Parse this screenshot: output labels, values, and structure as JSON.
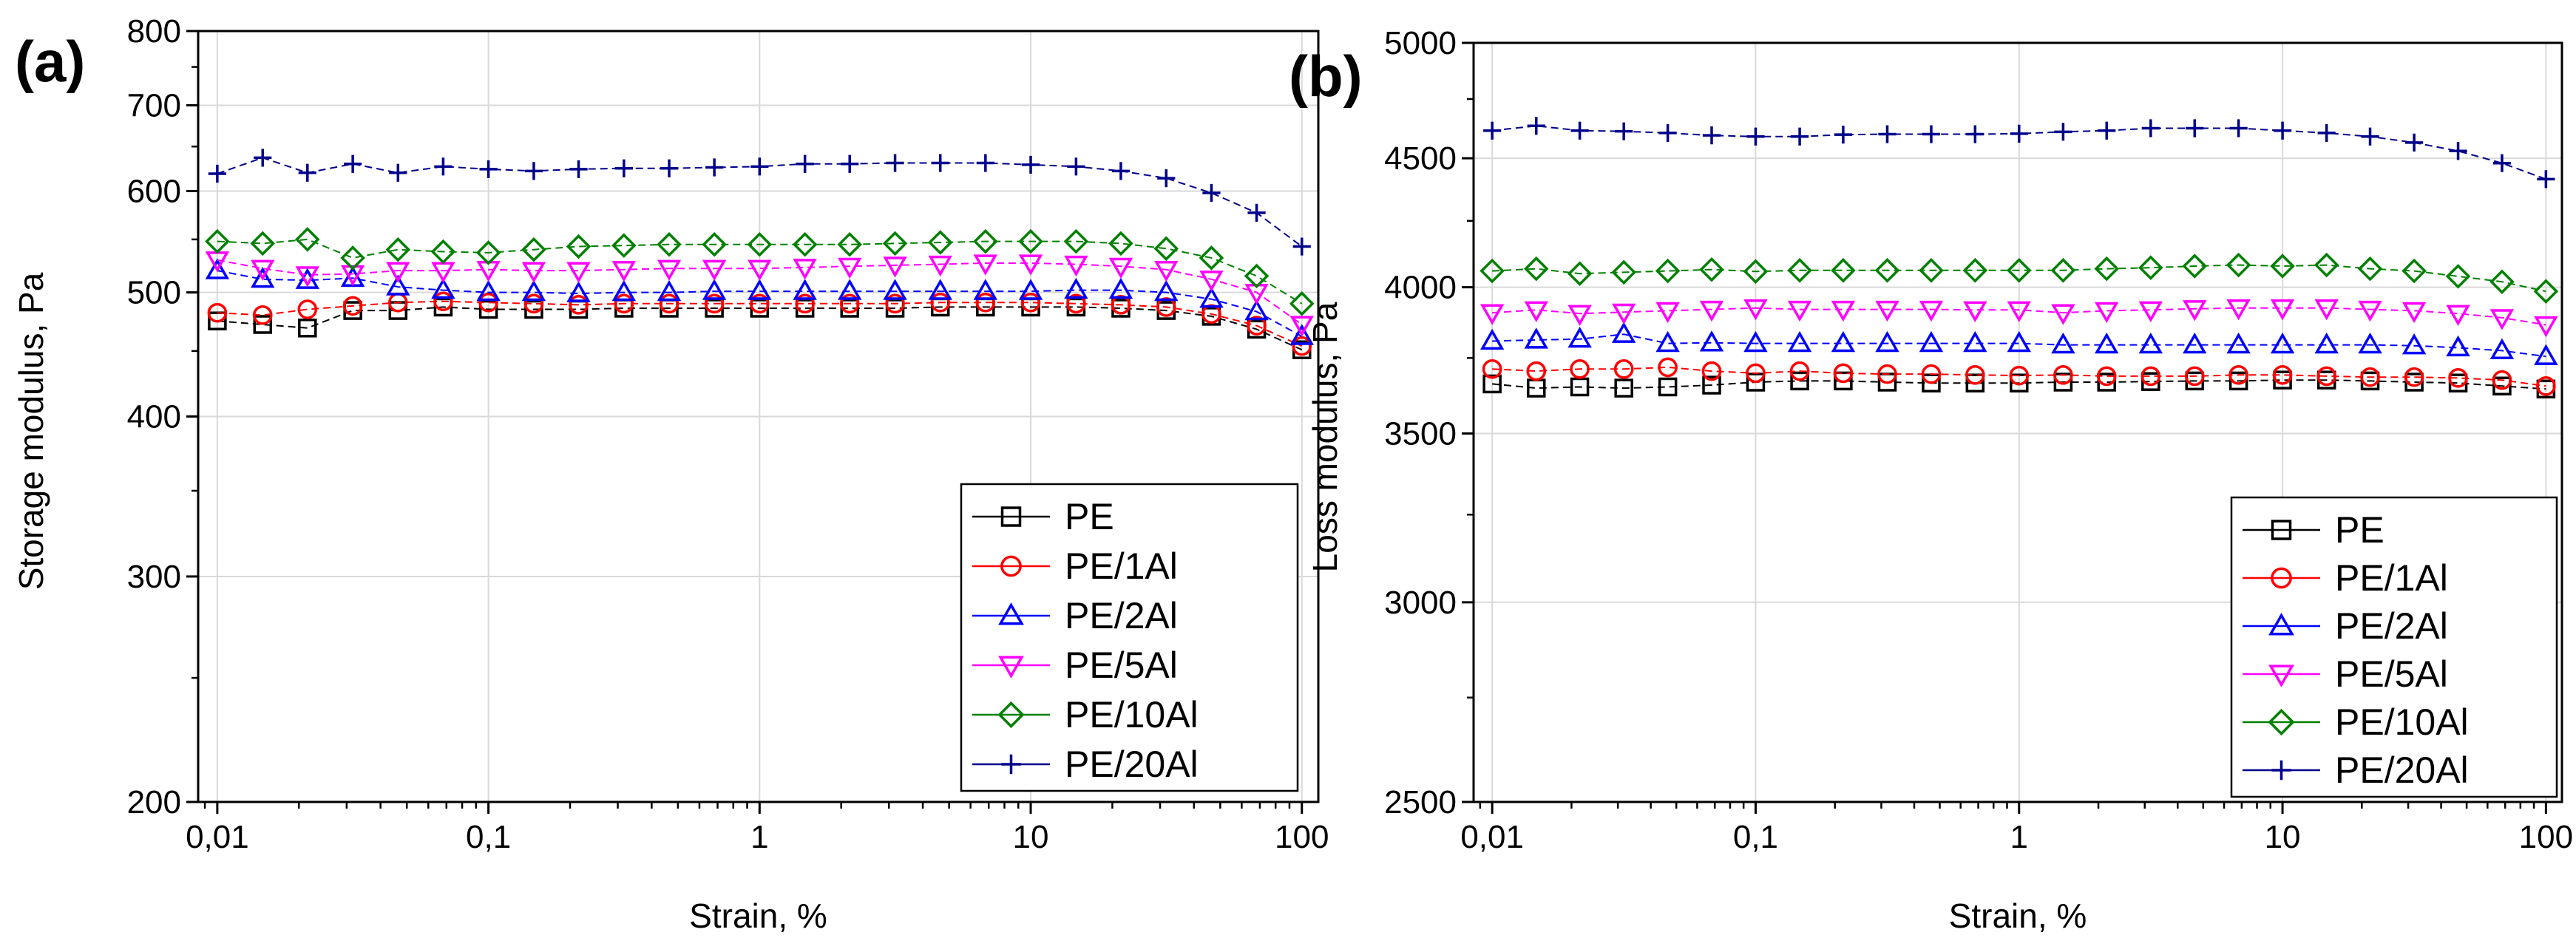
{
  "chart_data": [
    {
      "type": "line",
      "panel_label": "(a)",
      "xlabel": "Strain, %",
      "ylabel": "Storage modulus, Pa",
      "xscale": "log",
      "yscale": "log",
      "xlim": [
        0.0085,
        115
      ],
      "ylim": [
        200,
        800
      ],
      "xticks": [
        0.01,
        0.1,
        1,
        10,
        100
      ],
      "xtick_labels": [
        "0,01",
        "0,1",
        "1",
        "10",
        "100"
      ],
      "yticks": [
        200,
        300,
        400,
        500,
        600,
        700,
        800
      ],
      "ytick_labels": [
        "200",
        "300",
        "400",
        "500",
        "600",
        "700",
        "800"
      ],
      "grid": true,
      "legend_position": "bottom-right",
      "x": [
        0.01,
        0.0147,
        0.0215,
        0.0316,
        0.0464,
        0.0681,
        0.1,
        0.147,
        0.215,
        0.316,
        0.464,
        0.681,
        1,
        1.47,
        2.15,
        3.16,
        4.64,
        6.81,
        10,
        14.7,
        21.5,
        31.6,
        46.4,
        68.1,
        100
      ],
      "series": [
        {
          "name": "PE",
          "color": "#000000",
          "marker": "square",
          "values": [
            475,
            472,
            469,
            484,
            484,
            487,
            485,
            485,
            485,
            486,
            486,
            486,
            486,
            486,
            486,
            486,
            487,
            487,
            487,
            487,
            486,
            484,
            479,
            468,
            451
          ]
        },
        {
          "name": "PE/1Al",
          "color": "#ff0000",
          "marker": "circle",
          "values": [
            482,
            480,
            485,
            488,
            491,
            492,
            491,
            490,
            489,
            490,
            490,
            490,
            490,
            490,
            490,
            490,
            491,
            491,
            491,
            490,
            489,
            487,
            481,
            471,
            454
          ]
        },
        {
          "name": "PE/2Al",
          "color": "#0000ff",
          "marker": "triangle-up",
          "values": [
            520,
            512,
            511,
            513,
            505,
            502,
            500,
            500,
            499,
            500,
            500,
            501,
            501,
            501,
            501,
            501,
            501,
            501,
            501,
            502,
            502,
            500,
            494,
            483,
            462
          ]
        },
        {
          "name": "PE/5Al",
          "color": "#ff00ff",
          "marker": "triangle-down",
          "values": [
            530,
            522,
            516,
            517,
            520,
            520,
            521,
            520,
            520,
            521,
            522,
            522,
            522,
            523,
            524,
            525,
            526,
            527,
            527,
            526,
            524,
            521,
            512,
            500,
            472
          ]
        },
        {
          "name": "PE/10Al",
          "color": "#008000",
          "marker": "diamond",
          "values": [
            548,
            546,
            550,
            532,
            540,
            538,
            537,
            540,
            543,
            544,
            545,
            545,
            545,
            545,
            545,
            546,
            547,
            548,
            548,
            548,
            546,
            541,
            532,
            515,
            490
          ]
        },
        {
          "name": "PE/20Al",
          "color": "#00008b",
          "marker": "plus",
          "values": [
            619,
            637,
            620,
            630,
            620,
            627,
            624,
            622,
            624,
            625,
            625,
            626,
            627,
            630,
            630,
            631,
            631,
            631,
            629,
            627,
            622,
            614,
            598,
            577,
            543
          ]
        }
      ]
    },
    {
      "type": "line",
      "panel_label": "(b)",
      "xlabel": "Strain, %",
      "ylabel": "Loss modulus, Pa",
      "xscale": "log",
      "yscale": "log",
      "xlim": [
        0.0085,
        115
      ],
      "ylim": [
        2500,
        5000
      ],
      "xticks": [
        0.01,
        0.1,
        1,
        10,
        100
      ],
      "xtick_labels": [
        "0,01",
        "0,1",
        "1",
        "10",
        "100"
      ],
      "yticks": [
        2500,
        3000,
        3500,
        4000,
        4500,
        5000
      ],
      "ytick_labels": [
        "2500",
        "3000",
        "3500",
        "4000",
        "4500",
        "5000"
      ],
      "grid": true,
      "legend_position": "bottom-right",
      "x": [
        0.01,
        0.0147,
        0.0215,
        0.0316,
        0.0464,
        0.0681,
        0.1,
        0.147,
        0.215,
        0.316,
        0.464,
        0.681,
        1,
        1.47,
        2.15,
        3.16,
        4.64,
        6.81,
        10,
        14.7,
        21.5,
        31.6,
        46.4,
        68.1,
        100
      ],
      "series": [
        {
          "name": "PE",
          "color": "#000000",
          "marker": "square",
          "values": [
            3662,
            3648,
            3652,
            3648,
            3652,
            3658,
            3668,
            3672,
            3672,
            3668,
            3665,
            3665,
            3665,
            3668,
            3668,
            3670,
            3672,
            3672,
            3675,
            3675,
            3672,
            3668,
            3665,
            3655,
            3645
          ]
        },
        {
          "name": "PE/1Al",
          "color": "#ff0000",
          "marker": "circle",
          "values": [
            3712,
            3705,
            3712,
            3712,
            3718,
            3705,
            3698,
            3705,
            3698,
            3695,
            3695,
            3692,
            3690,
            3692,
            3688,
            3688,
            3688,
            3692,
            3692,
            3688,
            3685,
            3685,
            3682,
            3675,
            3655
          ]
        },
        {
          "name": "PE/2Al",
          "color": "#0000ff",
          "marker": "triangle-up",
          "values": [
            3808,
            3812,
            3815,
            3832,
            3800,
            3802,
            3800,
            3800,
            3800,
            3800,
            3800,
            3800,
            3800,
            3795,
            3795,
            3795,
            3795,
            3795,
            3795,
            3795,
            3795,
            3792,
            3785,
            3775,
            3755
          ]
        },
        {
          "name": "PE/5Al",
          "color": "#ff00ff",
          "marker": "triangle-down",
          "values": [
            3908,
            3918,
            3905,
            3910,
            3915,
            3920,
            3925,
            3920,
            3920,
            3920,
            3920,
            3918,
            3918,
            3908,
            3915,
            3918,
            3922,
            3925,
            3925,
            3925,
            3920,
            3915,
            3905,
            3890,
            3865
          ]
        },
        {
          "name": "PE/10Al",
          "color": "#008000",
          "marker": "diamond",
          "values": [
            4060,
            4068,
            4050,
            4055,
            4060,
            4065,
            4058,
            4062,
            4062,
            4062,
            4062,
            4062,
            4062,
            4062,
            4068,
            4072,
            4078,
            4082,
            4078,
            4082,
            4068,
            4060,
            4040,
            4020,
            3985
          ]
        },
        {
          "name": "PE/20Al",
          "color": "#00008b",
          "marker": "plus",
          "values": [
            4615,
            4635,
            4615,
            4612,
            4605,
            4595,
            4590,
            4590,
            4598,
            4600,
            4600,
            4600,
            4602,
            4610,
            4615,
            4625,
            4625,
            4625,
            4615,
            4605,
            4590,
            4565,
            4530,
            4480,
            4415
          ]
        }
      ]
    }
  ]
}
